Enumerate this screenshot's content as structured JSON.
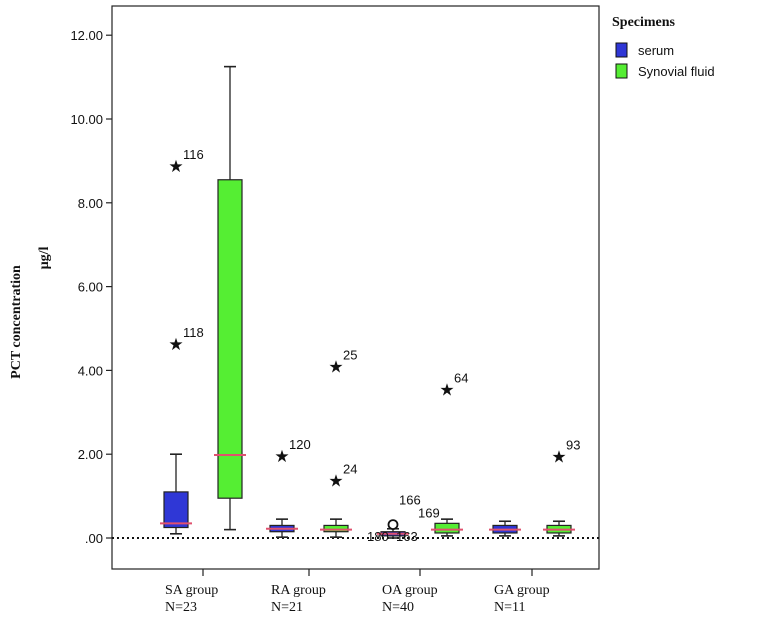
{
  "chart_data": {
    "type": "boxplot",
    "title": "",
    "ylabel": "PCT concentration",
    "yunit": "µg/l",
    "ylim": [
      -0.6,
      12.4
    ],
    "yticks": [
      0,
      2,
      4,
      6,
      8,
      10,
      12
    ],
    "ytick_labels": [
      ".00",
      "2.00",
      "4.00",
      "6.00",
      "8.00",
      "10.00",
      "12.00"
    ],
    "legend": {
      "title": "Specimens",
      "placement": "outside-right-top",
      "entries": [
        "serum",
        "Synovial fluid"
      ]
    },
    "series": [
      {
        "name": "serum",
        "color": "#2f37d6"
      },
      {
        "name": "Synovial fluid",
        "color": "#55ee33"
      }
    ],
    "reference_line": {
      "y": 0,
      "style": "dotted"
    },
    "groups": [
      {
        "label": "SA group",
        "n_label": "N=23",
        "boxes": [
          {
            "series": "serum",
            "whisker_low": 0.1,
            "q1": 0.25,
            "median": 0.35,
            "q3": 1.1,
            "whisker_high": 2.0,
            "outliers": [
              {
                "y": 8.9,
                "label": "116",
                "marker": "star"
              },
              {
                "y": 4.65,
                "label": "118",
                "marker": "star"
              }
            ]
          },
          {
            "series": "Synovial fluid",
            "whisker_low": 0.2,
            "q1": 0.95,
            "median": 1.98,
            "q3": 8.55,
            "whisker_high": 11.25,
            "outliers": []
          }
        ]
      },
      {
        "label": "RA group",
        "n_label": "N=21",
        "boxes": [
          {
            "series": "serum",
            "whisker_low": 0.02,
            "q1": 0.15,
            "median": 0.22,
            "q3": 0.3,
            "whisker_high": 0.45,
            "outliers": [
              {
                "y": 1.98,
                "label": "120",
                "marker": "star"
              }
            ]
          },
          {
            "series": "Synovial fluid",
            "whisker_low": 0.02,
            "q1": 0.15,
            "median": 0.2,
            "q3": 0.3,
            "whisker_high": 0.45,
            "outliers": [
              {
                "y": 4.12,
                "label": "25",
                "marker": "star"
              },
              {
                "y": 1.4,
                "label": "24",
                "marker": "star"
              }
            ]
          }
        ]
      },
      {
        "label": "OA group",
        "n_label": "N=40",
        "boxes": [
          {
            "series": "serum",
            "whisker_low": 0.0,
            "q1": 0.05,
            "median": 0.1,
            "q3": 0.15,
            "whisker_high": 0.22,
            "outliers": [
              {
                "y": 0.32,
                "label": "166",
                "marker": "circle"
              }
            ],
            "extra_labels": [
              "180",
              "163"
            ]
          },
          {
            "series": "Synovial fluid",
            "whisker_low": 0.05,
            "q1": 0.12,
            "median": 0.2,
            "q3": 0.35,
            "whisker_high": 0.45,
            "outliers": [
              {
                "y": 3.57,
                "label": "64",
                "marker": "star"
              }
            ],
            "extra_labels": [
              "169"
            ]
          }
        ]
      },
      {
        "label": "GA group",
        "n_label": "N=11",
        "boxes": [
          {
            "series": "serum",
            "whisker_low": 0.05,
            "q1": 0.12,
            "median": 0.2,
            "q3": 0.3,
            "whisker_high": 0.4,
            "outliers": []
          },
          {
            "series": "Synovial fluid",
            "whisker_low": 0.05,
            "q1": 0.12,
            "median": 0.2,
            "q3": 0.3,
            "whisker_high": 0.4,
            "outliers": [
              {
                "y": 1.97,
                "label": "93",
                "marker": "star"
              }
            ]
          }
        ]
      }
    ],
    "median_color": "#e0506e"
  }
}
